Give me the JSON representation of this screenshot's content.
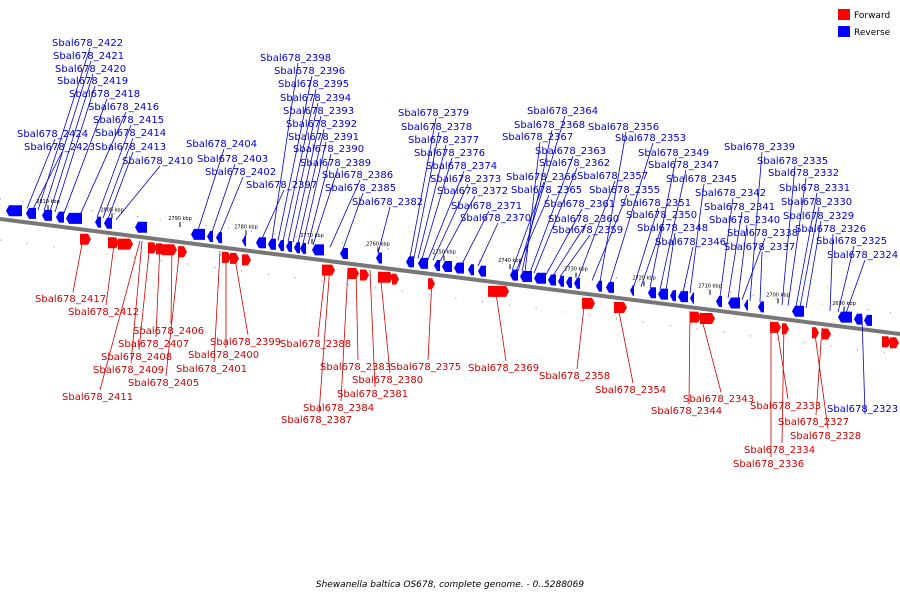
{
  "legend": {
    "forward": {
      "label": "Forward",
      "color": "#ff0000"
    },
    "reverse": {
      "label": "Reverse",
      "color": "#0000ff"
    }
  },
  "caption": "Shewanella baltica OS678, complete genome. - 0..5288069",
  "ticks": [
    "2810 kbp",
    "2800 kbp",
    "2790 kbp",
    "2780 kbp",
    "2770 kbp",
    "2760 kbp",
    "2750 kbp",
    "2740 kbp",
    "2730 kbp",
    "2720 kbp",
    "2710 kbp",
    "2700 kbp",
    "2690 kbp"
  ],
  "reverse_genes": [
    "Sbal678_2422",
    "Sbal678_2421",
    "Sbal678_2420",
    "Sbal678_2419",
    "Sbal678_2418",
    "Sbal678_2416",
    "Sbal678_2415",
    "Sbal678_2414",
    "Sbal678_2424",
    "Sbal678_2413",
    "Sbal678_2423",
    "Sbal678_2410",
    "Sbal678_2404",
    "Sbal678_2403",
    "Sbal678_2402",
    "Sbal678_2397",
    "Sbal678_2398",
    "Sbal678_2396",
    "Sbal678_2395",
    "Sbal678_2394",
    "Sbal678_2393",
    "Sbal678_2392",
    "Sbal678_2391",
    "Sbal678_2390",
    "Sbal678_2389",
    "Sbal678_2386",
    "Sbal678_2385",
    "Sbal678_2382",
    "Sbal678_2379",
    "Sbal678_2378",
    "Sbal678_2377",
    "Sbal678_2376",
    "Sbal678_2374",
    "Sbal678_2373",
    "Sbal678_2372",
    "Sbal678_2371",
    "Sbal678_2370",
    "Sbal678_2364",
    "Sbal678_2368",
    "Sbal678_2367",
    "Sbal678_2363",
    "Sbal678_2362",
    "Sbal678_2366",
    "Sbal678_2365",
    "Sbal678_2361",
    "Sbal678_2360",
    "Sbal678_2359",
    "Sbal678_2356",
    "Sbal678_2353",
    "Sbal678_2357",
    "Sbal678_2355",
    "Sbal678_2349",
    "Sbal678_2347",
    "Sbal678_2351",
    "Sbal678_2350",
    "Sbal678_2348",
    "Sbal678_2345",
    "Sbal678_2346",
    "Sbal678_2339",
    "Sbal678_2342",
    "Sbal678_2341",
    "Sbal678_2340",
    "Sbal678_2338",
    "Sbal678_2337",
    "Sbal678_2335",
    "Sbal678_2332",
    "Sbal678_2331",
    "Sbal678_2330",
    "Sbal678_2329",
    "Sbal678_2326",
    "Sbal678_2325",
    "Sbal678_2324",
    "Sbal678_2323"
  ],
  "forward_genes": [
    "Sbal678_2417",
    "Sbal678_2412",
    "Sbal678_2406",
    "Sbal678_2407",
    "Sbal678_2408",
    "Sbal678_2409",
    "Sbal678_2405",
    "Sbal678_2411",
    "Sbal678_2399",
    "Sbal678_2400",
    "Sbal678_2401",
    "Sbal678_2388",
    "Sbal678_2383",
    "Sbal678_2380",
    "Sbal678_2381",
    "Sbal678_2384",
    "Sbal678_2387",
    "Sbal678_2375",
    "Sbal678_2369",
    "Sbal678_2358",
    "Sbal678_2354",
    "Sbal678_2343",
    "Sbal678_2344",
    "Sbal678_2333",
    "Sbal678_2327",
    "Sbal678_2328",
    "Sbal678_2334",
    "Sbal678_2336"
  ]
}
